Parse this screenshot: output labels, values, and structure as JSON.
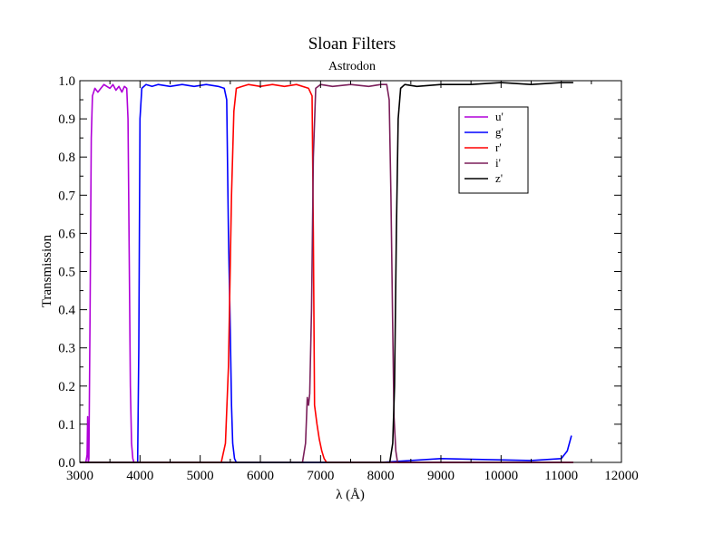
{
  "chart_data": {
    "type": "line",
    "title": "Sloan Filters",
    "subtitle": "Astrodon",
    "xlabel": "λ (Å)",
    "ylabel": "Transmission",
    "xlim": [
      3000,
      12000
    ],
    "ylim": [
      0,
      1.0
    ],
    "x_ticks": [
      3000,
      4000,
      5000,
      6000,
      7000,
      8000,
      9000,
      10000,
      11000,
      12000
    ],
    "y_ticks": [
      "0.0",
      "0.1",
      "0.2",
      "0.3",
      "0.4",
      "0.5",
      "0.6",
      "0.7",
      "0.8",
      "0.9",
      "1.0"
    ],
    "legend_position": "upper-right",
    "series": [
      {
        "name": "u'",
        "color": "#b000d8",
        "points": [
          [
            3100,
            0
          ],
          [
            3120,
            0.02
          ],
          [
            3130,
            0.12
          ],
          [
            3140,
            0.0
          ],
          [
            3150,
            0.01
          ],
          [
            3170,
            0.4
          ],
          [
            3190,
            0.85
          ],
          [
            3210,
            0.96
          ],
          [
            3250,
            0.98
          ],
          [
            3300,
            0.97
          ],
          [
            3350,
            0.98
          ],
          [
            3400,
            0.99
          ],
          [
            3450,
            0.985
          ],
          [
            3500,
            0.98
          ],
          [
            3550,
            0.99
          ],
          [
            3600,
            0.975
          ],
          [
            3650,
            0.985
          ],
          [
            3700,
            0.97
          ],
          [
            3740,
            0.985
          ],
          [
            3780,
            0.98
          ],
          [
            3800,
            0.9
          ],
          [
            3820,
            0.55
          ],
          [
            3840,
            0.2
          ],
          [
            3860,
            0.05
          ],
          [
            3880,
            0.01
          ],
          [
            3900,
            0.0
          ],
          [
            5000,
            0.0
          ],
          [
            7000,
            0.0
          ],
          [
            9000,
            0.0
          ],
          [
            11200,
            0.0
          ]
        ]
      },
      {
        "name": "g'",
        "color": "#0000ff",
        "points": [
          [
            3000,
            0.0
          ],
          [
            3960,
            0.0
          ],
          [
            3980,
            0.3
          ],
          [
            4000,
            0.9
          ],
          [
            4030,
            0.98
          ],
          [
            4100,
            0.99
          ],
          [
            4200,
            0.985
          ],
          [
            4300,
            0.99
          ],
          [
            4500,
            0.985
          ],
          [
            4700,
            0.99
          ],
          [
            4900,
            0.985
          ],
          [
            5100,
            0.99
          ],
          [
            5300,
            0.985
          ],
          [
            5400,
            0.98
          ],
          [
            5440,
            0.95
          ],
          [
            5470,
            0.6
          ],
          [
            5500,
            0.35
          ],
          [
            5520,
            0.15
          ],
          [
            5540,
            0.05
          ],
          [
            5570,
            0.01
          ],
          [
            5600,
            0.0
          ],
          [
            8000,
            0.0
          ],
          [
            9000,
            0.01
          ],
          [
            10500,
            0.005
          ],
          [
            11000,
            0.01
          ],
          [
            11100,
            0.03
          ],
          [
            11170,
            0.07
          ]
        ]
      },
      {
        "name": "r'",
        "color": "#ff0000",
        "points": [
          [
            3000,
            0.0
          ],
          [
            5350,
            0.0
          ],
          [
            5420,
            0.05
          ],
          [
            5470,
            0.25
          ],
          [
            5520,
            0.7
          ],
          [
            5560,
            0.92
          ],
          [
            5600,
            0.98
          ],
          [
            5700,
            0.985
          ],
          [
            5800,
            0.99
          ],
          [
            6000,
            0.985
          ],
          [
            6200,
            0.99
          ],
          [
            6400,
            0.985
          ],
          [
            6600,
            0.99
          ],
          [
            6800,
            0.98
          ],
          [
            6860,
            0.96
          ],
          [
            6880,
            0.6
          ],
          [
            6900,
            0.15
          ],
          [
            6940,
            0.1
          ],
          [
            6980,
            0.06
          ],
          [
            7020,
            0.03
          ],
          [
            7060,
            0.01
          ],
          [
            7100,
            0.0
          ],
          [
            11200,
            0.0
          ]
        ]
      },
      {
        "name": "i'",
        "color": "#7b1f5a",
        "points": [
          [
            3000,
            0.0
          ],
          [
            6700,
            0.0
          ],
          [
            6750,
            0.05
          ],
          [
            6780,
            0.17
          ],
          [
            6800,
            0.15
          ],
          [
            6820,
            0.18
          ],
          [
            6850,
            0.4
          ],
          [
            6880,
            0.8
          ],
          [
            6920,
            0.98
          ],
          [
            7000,
            0.99
          ],
          [
            7200,
            0.985
          ],
          [
            7500,
            0.99
          ],
          [
            7800,
            0.985
          ],
          [
            8000,
            0.99
          ],
          [
            8100,
            0.99
          ],
          [
            8140,
            0.95
          ],
          [
            8170,
            0.7
          ],
          [
            8200,
            0.35
          ],
          [
            8220,
            0.12
          ],
          [
            8250,
            0.03
          ],
          [
            8280,
            0.0
          ],
          [
            11200,
            0.0
          ]
        ]
      },
      {
        "name": "z'",
        "color": "#000000",
        "points": [
          [
            3000,
            0.0
          ],
          [
            8150,
            0.0
          ],
          [
            8200,
            0.05
          ],
          [
            8230,
            0.2
          ],
          [
            8260,
            0.6
          ],
          [
            8290,
            0.9
          ],
          [
            8330,
            0.98
          ],
          [
            8400,
            0.99
          ],
          [
            8600,
            0.985
          ],
          [
            9000,
            0.99
          ],
          [
            9500,
            0.99
          ],
          [
            10000,
            0.995
          ],
          [
            10500,
            0.99
          ],
          [
            11000,
            0.995
          ],
          [
            11200,
            0.995
          ]
        ]
      }
    ]
  }
}
